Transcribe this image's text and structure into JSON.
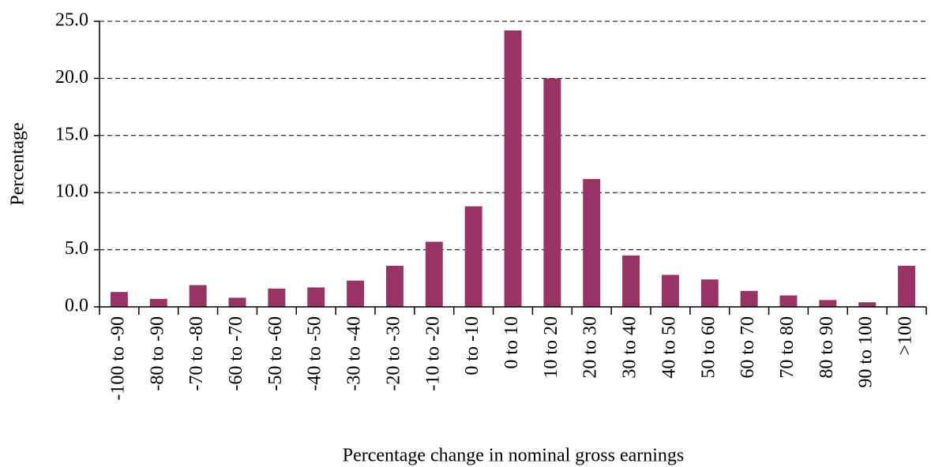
{
  "chart_data": {
    "type": "bar",
    "y_label": "Percentage",
    "x_label": "Percentage change in nominal gross earnings",
    "categories": [
      "-100 to -90",
      "-80 to -90",
      "-70 to -80",
      "-60 to -70",
      "-50 to -60",
      "-40 to -50",
      "-30 to -40",
      "-20 to -30",
      "-10 to -20",
      "0 to -10",
      "0 to 10",
      "10 to 20",
      "20 to 30",
      "30 to 40",
      "40 to 50",
      "50 to 60",
      "60 to 70",
      "70 to 80",
      "80 to 90",
      "90 to 100",
      ">100"
    ],
    "values": [
      1.3,
      0.7,
      1.9,
      0.8,
      1.6,
      1.7,
      2.3,
      3.6,
      5.7,
      8.8,
      24.2,
      20.0,
      11.2,
      4.5,
      2.8,
      2.4,
      1.4,
      1.0,
      0.6,
      0.4,
      3.6
    ],
    "color": "#993366",
    "ylim": [
      0,
      25
    ],
    "yticks": [
      {
        "value": 0,
        "label": "0.0"
      },
      {
        "value": 5,
        "label": "5.0"
      },
      {
        "value": 10,
        "label": "10.0"
      },
      {
        "value": 15,
        "label": "15.0"
      },
      {
        "value": 20,
        "label": "20.0"
      },
      {
        "value": 25,
        "label": "25.0"
      }
    ],
    "grid": true
  }
}
